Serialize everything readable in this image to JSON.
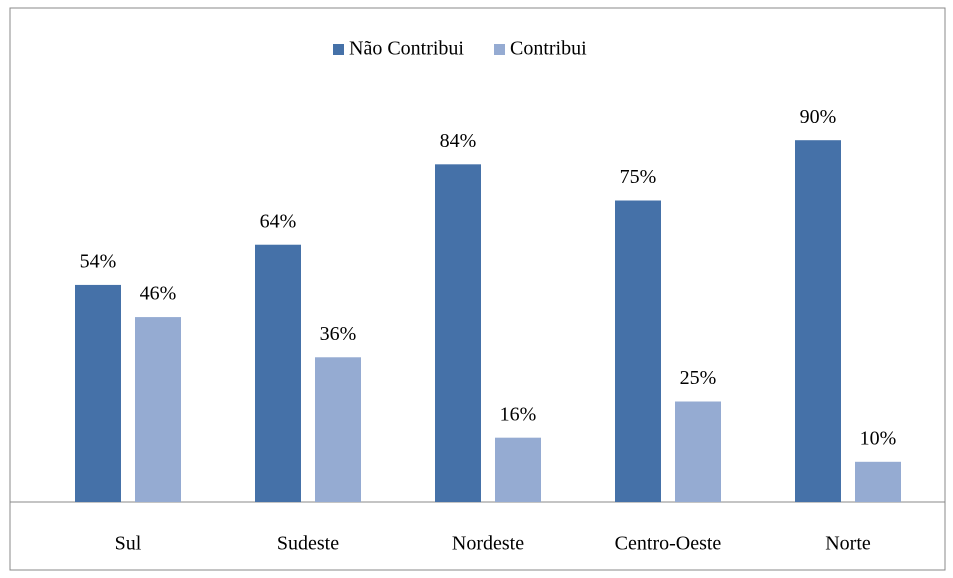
{
  "chart_data": {
    "type": "bar",
    "categories": [
      "Sul",
      "Sudeste",
      "Nordeste",
      "Centro-Oeste",
      "Norte"
    ],
    "series": [
      {
        "name": "Não Contribui",
        "color": "#4571a8",
        "values": [
          54,
          64,
          84,
          75,
          90
        ],
        "value_labels": [
          "54%",
          "64%",
          "84%",
          "75%",
          "90%"
        ]
      },
      {
        "name": "Contribui",
        "color": "#95abd2",
        "values": [
          46,
          36,
          16,
          25,
          10
        ],
        "value_labels": [
          "46%",
          "36%",
          "16%",
          "25%",
          "10%"
        ]
      }
    ],
    "ylim": [
      0,
      100
    ],
    "legend": "top"
  }
}
